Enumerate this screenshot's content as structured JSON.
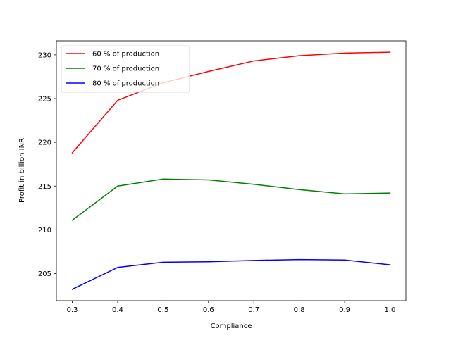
{
  "chart_data": {
    "type": "line",
    "title": "",
    "xlabel": "Compliance",
    "ylabel": "Profit in billion INR",
    "x": [
      0.3,
      0.4,
      0.5,
      0.6,
      0.7,
      0.8,
      0.9,
      1.0
    ],
    "x_ticks": [
      "0.3",
      "0.4",
      "0.5",
      "0.6",
      "0.7",
      "0.8",
      "0.9",
      "1.0"
    ],
    "y_ticks": [
      "205",
      "210",
      "215",
      "220",
      "225",
      "230"
    ],
    "y_tick_values": [
      205,
      210,
      215,
      220,
      225,
      230
    ],
    "xlim": [
      0.265,
      1.035
    ],
    "ylim": [
      201.9,
      231.6
    ],
    "grid": false,
    "legend_position": "top-left",
    "series": [
      {
        "name": "60 % of production",
        "color": "#ff0000",
        "values": [
          218.8,
          224.8,
          226.8,
          228.1,
          229.3,
          229.9,
          230.2,
          230.3
        ]
      },
      {
        "name": "70 % of production",
        "color": "#008000",
        "values": [
          211.1,
          215.0,
          215.8,
          215.7,
          215.2,
          214.6,
          214.1,
          214.2
        ]
      },
      {
        "name": "80 % of production",
        "color": "#0000ff",
        "values": [
          203.2,
          205.7,
          206.3,
          206.35,
          206.5,
          206.6,
          206.55,
          206.0
        ]
      }
    ]
  }
}
